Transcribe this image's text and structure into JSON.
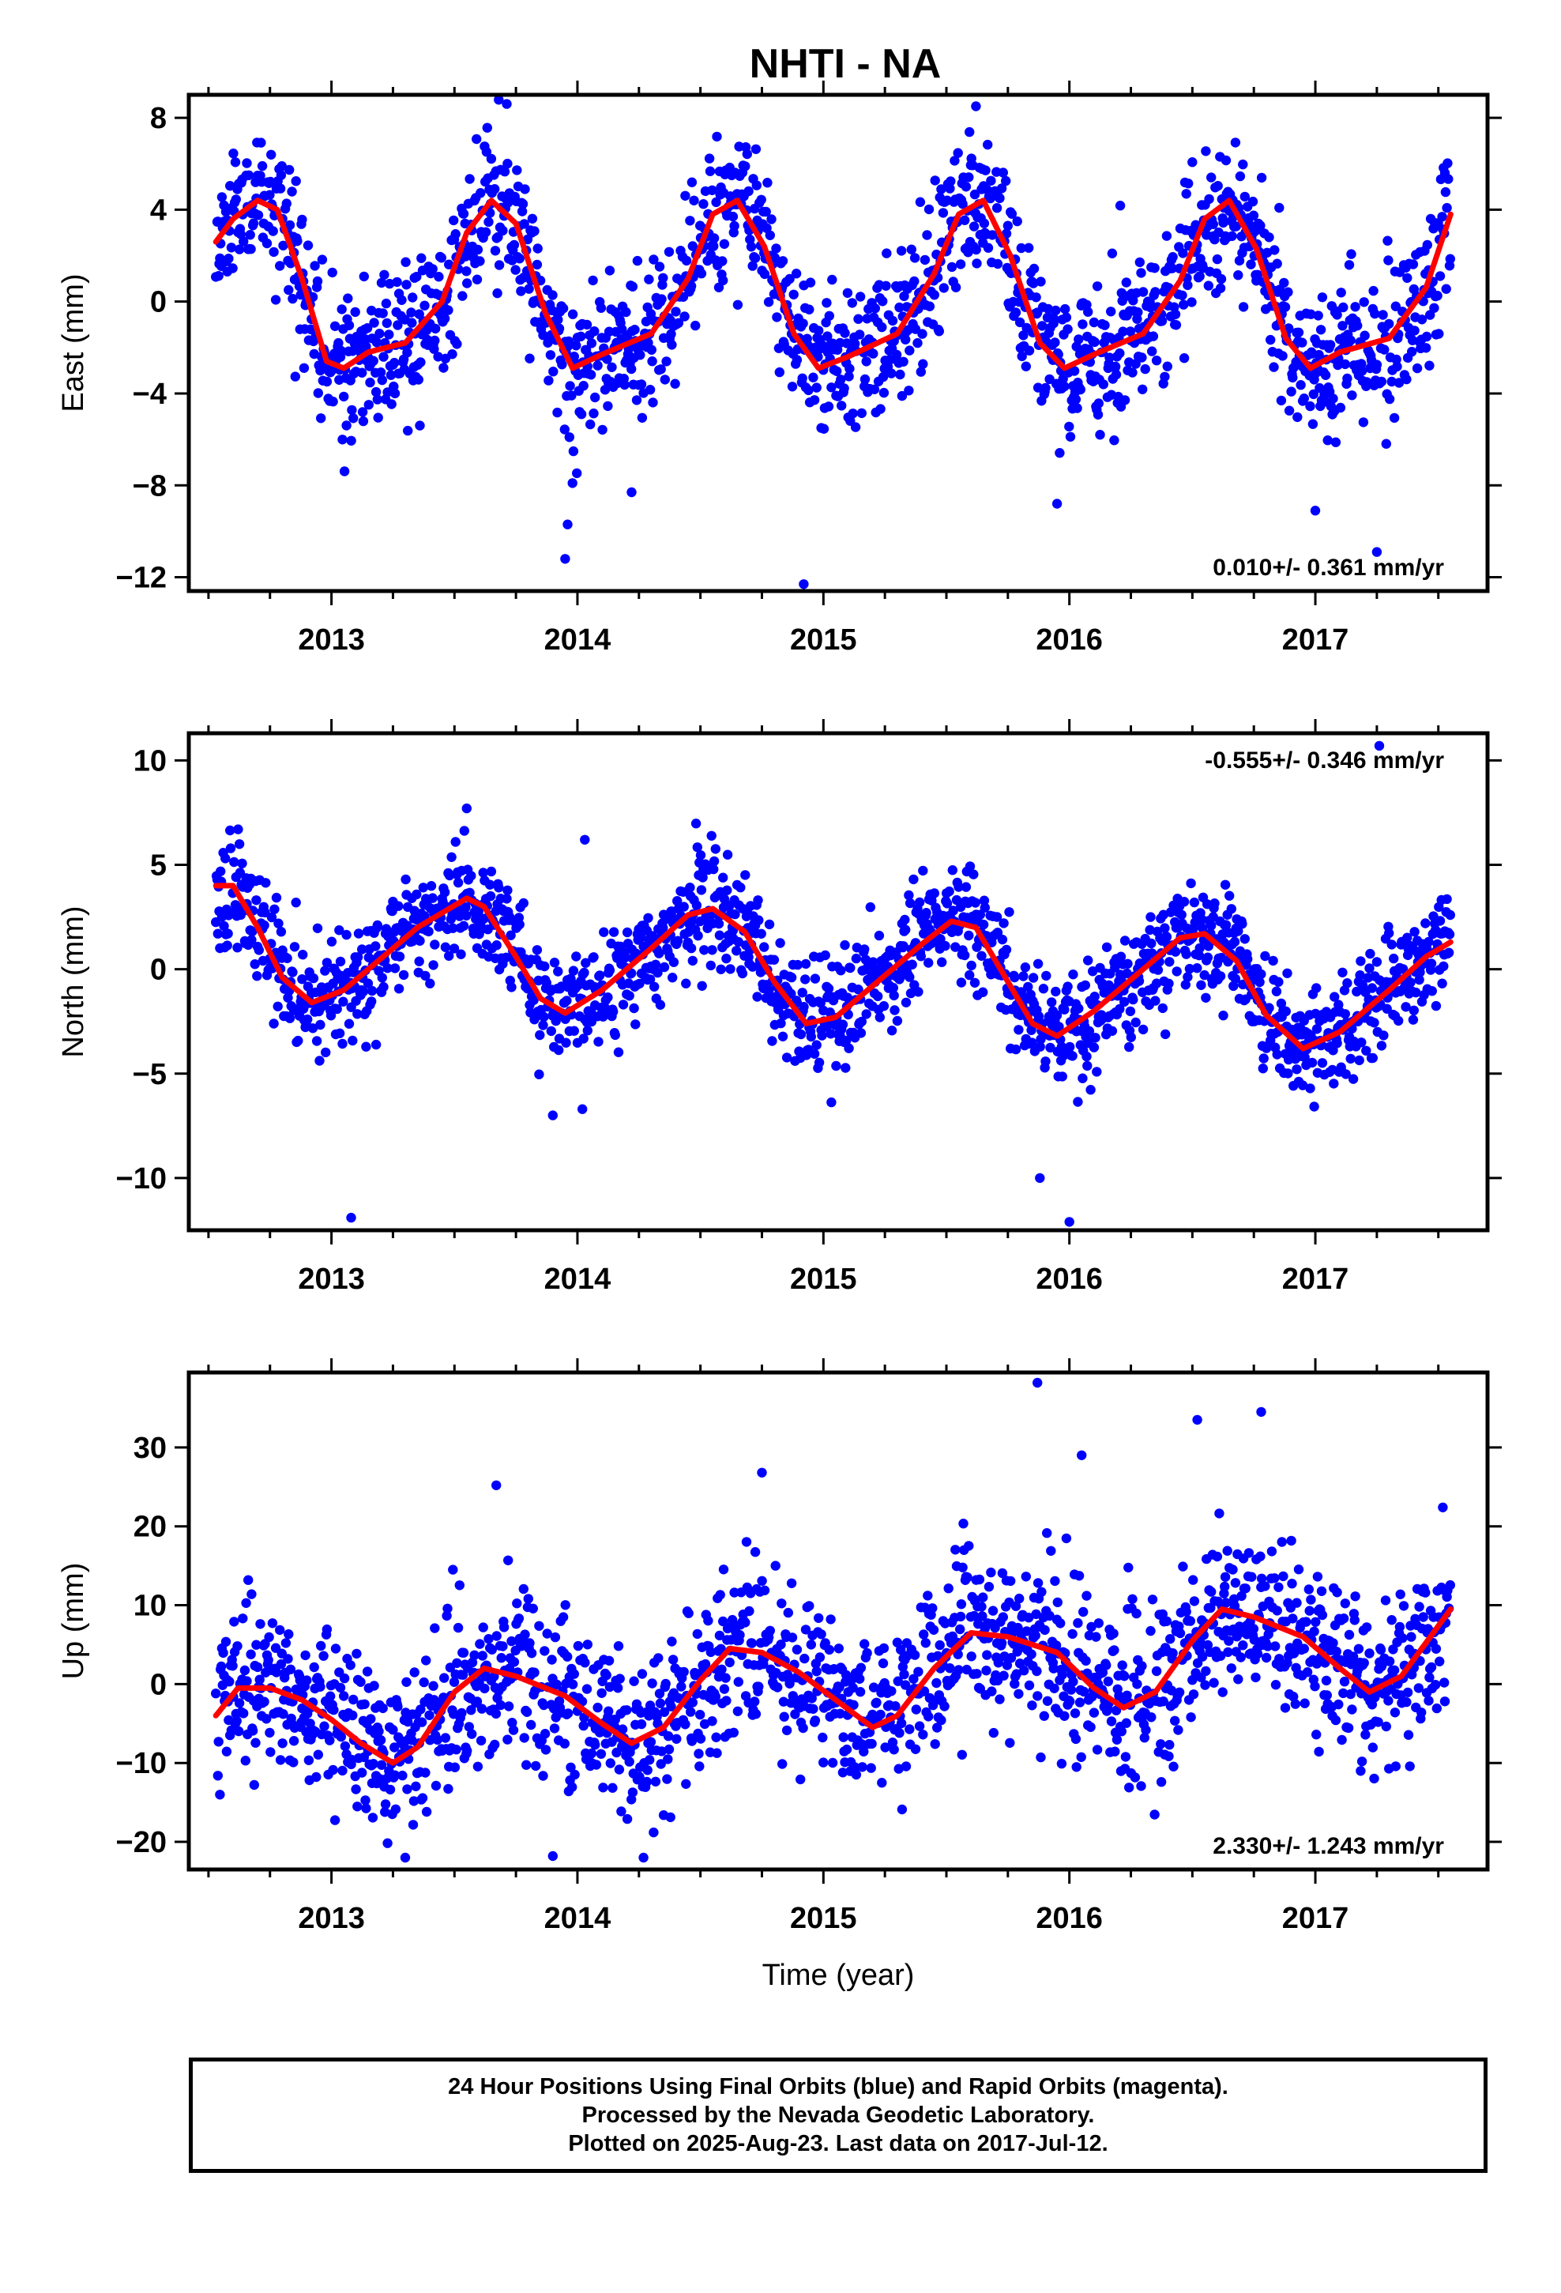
{
  "title": "NHTI - NA",
  "colors": {
    "final_orbits": "#0000ff",
    "rapid_orbits": "#ff00ff",
    "fit": "#ff0000",
    "frame": "#000000"
  },
  "footer": {
    "line1": "24 Hour Positions Using Final Orbits (blue) and Rapid Orbits (magenta).",
    "line2": "Processed by the Nevada Geodetic Laboratory.",
    "line3": "Plotted on 2025-Aug-23. Last data on 2017-Jul-12."
  },
  "chart_data": [
    {
      "type": "scatter",
      "name": "east",
      "ylabel": "East (mm)",
      "xlabel": "",
      "xlim": [
        2012.42,
        2017.7
      ],
      "ylim": [
        -12.6,
        9.0
      ],
      "x_ticks": [
        2013,
        2014,
        2015,
        2016,
        2017
      ],
      "y_ticks": [
        8,
        4,
        0,
        -4,
        -8,
        -12
      ],
      "y_tick_labels": [
        "8",
        "4",
        "0",
        "−4",
        "−8",
        "−12"
      ],
      "rate_text": "0.010+/- 0.361 mm/yr",
      "rate_position": "bottom-right",
      "point_color": "#0000ff",
      "fit_color": "#ff0000",
      "seed": 11,
      "noise": 1.6,
      "fit": [
        [
          2012.53,
          2.6
        ],
        [
          2012.6,
          3.6
        ],
        [
          2012.7,
          4.4
        ],
        [
          2012.78,
          4.0
        ],
        [
          2012.88,
          1.0
        ],
        [
          2012.98,
          -2.6
        ],
        [
          2013.05,
          -2.9
        ],
        [
          2013.15,
          -2.2
        ],
        [
          2013.3,
          -1.8
        ],
        [
          2013.45,
          0.0
        ],
        [
          2013.55,
          3.0
        ],
        [
          2013.65,
          4.4
        ],
        [
          2013.75,
          3.4
        ],
        [
          2013.87,
          -0.5
        ],
        [
          2013.98,
          -2.9
        ],
        [
          2014.1,
          -2.3
        ],
        [
          2014.3,
          -1.4
        ],
        [
          2014.45,
          1.0
        ],
        [
          2014.55,
          3.8
        ],
        [
          2014.65,
          4.4
        ],
        [
          2014.76,
          2.4
        ],
        [
          2014.88,
          -1.4
        ],
        [
          2014.98,
          -2.9
        ],
        [
          2015.1,
          -2.4
        ],
        [
          2015.3,
          -1.4
        ],
        [
          2015.45,
          1.2
        ],
        [
          2015.55,
          3.8
        ],
        [
          2015.65,
          4.4
        ],
        [
          2015.76,
          2.0
        ],
        [
          2015.88,
          -1.8
        ],
        [
          2015.98,
          -2.9
        ],
        [
          2016.1,
          -2.3
        ],
        [
          2016.3,
          -1.4
        ],
        [
          2016.45,
          0.9
        ],
        [
          2016.55,
          3.6
        ],
        [
          2016.65,
          4.4
        ],
        [
          2016.76,
          2.3
        ],
        [
          2016.88,
          -1.6
        ],
        [
          2016.98,
          -2.9
        ],
        [
          2017.1,
          -2.2
        ],
        [
          2017.3,
          -1.6
        ],
        [
          2017.45,
          0.6
        ],
        [
          2017.55,
          3.8
        ]
      ],
      "outliers": [
        [
          2013.95,
          -11.2
        ],
        [
          2013.96,
          -9.7
        ],
        [
          2014.92,
          -12.3
        ],
        [
          2015.62,
          8.5
        ],
        [
          2017.25,
          -10.9
        ],
        [
          2015.95,
          -8.8
        ],
        [
          2017.0,
          -9.1
        ],
        [
          2014.22,
          -8.3
        ],
        [
          2013.98,
          -7.9
        ]
      ]
    },
    {
      "type": "scatter",
      "name": "north",
      "ylabel": "North (mm)",
      "xlabel": "",
      "xlim": [
        2012.42,
        2017.7
      ],
      "ylim": [
        -12.5,
        11.3
      ],
      "x_ticks": [
        2013,
        2014,
        2015,
        2016,
        2017
      ],
      "y_ticks": [
        10,
        5,
        0,
        -5,
        -10
      ],
      "y_tick_labels": [
        "10",
        "5",
        "0",
        "−5",
        "−10"
      ],
      "rate_text": "-0.555+/- 0.346 mm/yr",
      "rate_position": "top-right",
      "point_color": "#0000ff",
      "fit_color": "#ff0000",
      "seed": 23,
      "noise": 1.35,
      "fit": [
        [
          2012.53,
          4.0
        ],
        [
          2012.6,
          4.0
        ],
        [
          2012.7,
          2.0
        ],
        [
          2012.8,
          -0.4
        ],
        [
          2012.92,
          -1.6
        ],
        [
          2013.05,
          -1.0
        ],
        [
          2013.2,
          0.5
        ],
        [
          2013.35,
          2.0
        ],
        [
          2013.55,
          3.4
        ],
        [
          2013.62,
          3.0
        ],
        [
          2013.75,
          0.6
        ],
        [
          2013.85,
          -1.4
        ],
        [
          2013.95,
          -2.1
        ],
        [
          2014.1,
          -1.0
        ],
        [
          2014.3,
          1.0
        ],
        [
          2014.45,
          2.6
        ],
        [
          2014.55,
          2.9
        ],
        [
          2014.68,
          1.8
        ],
        [
          2014.8,
          -0.6
        ],
        [
          2014.93,
          -2.6
        ],
        [
          2015.05,
          -2.3
        ],
        [
          2015.2,
          -0.8
        ],
        [
          2015.4,
          1.2
        ],
        [
          2015.52,
          2.3
        ],
        [
          2015.62,
          2.0
        ],
        [
          2015.75,
          -0.6
        ],
        [
          2015.85,
          -2.6
        ],
        [
          2015.95,
          -3.2
        ],
        [
          2016.1,
          -2.0
        ],
        [
          2016.3,
          0.0
        ],
        [
          2016.45,
          1.5
        ],
        [
          2016.55,
          1.7
        ],
        [
          2016.68,
          0.4
        ],
        [
          2016.8,
          -2.2
        ],
        [
          2016.95,
          -3.8
        ],
        [
          2017.1,
          -3.0
        ],
        [
          2017.3,
          -1.0
        ],
        [
          2017.45,
          0.6
        ],
        [
          2017.55,
          1.3
        ]
      ],
      "outliers": [
        [
          2013.08,
          -11.9
        ],
        [
          2013.55,
          7.7
        ],
        [
          2014.03,
          6.2
        ],
        [
          2015.88,
          -10.0
        ],
        [
          2016.0,
          -12.1
        ],
        [
          2017.26,
          10.7
        ],
        [
          2013.9,
          -7.0
        ],
        [
          2014.02,
          -6.7
        ]
      ]
    },
    {
      "type": "scatter",
      "name": "up",
      "ylabel": "Up (mm)",
      "xlabel": "Time (year)",
      "xlim": [
        2012.42,
        2017.7
      ],
      "ylim": [
        -23.5,
        39.5
      ],
      "x_ticks": [
        2013,
        2014,
        2015,
        2016,
        2017
      ],
      "y_ticks": [
        30,
        20,
        10,
        0,
        -10,
        -20
      ],
      "y_tick_labels": [
        "30",
        "20",
        "10",
        "0",
        "−10",
        "−20"
      ],
      "rate_text": "2.330+/- 1.243 mm/yr",
      "rate_position": "bottom-right",
      "point_color": "#0000ff",
      "fit_color": "#ff0000",
      "seed": 37,
      "noise": 5.2,
      "fit": [
        [
          2012.53,
          -4.0
        ],
        [
          2012.62,
          -0.5
        ],
        [
          2012.75,
          -0.5
        ],
        [
          2012.88,
          -2.0
        ],
        [
          2013.0,
          -4.5
        ],
        [
          2013.12,
          -7.5
        ],
        [
          2013.25,
          -10.0
        ],
        [
          2013.35,
          -8.0
        ],
        [
          2013.5,
          -1.0
        ],
        [
          2013.62,
          2.0
        ],
        [
          2013.75,
          1.0
        ],
        [
          2013.95,
          -1.5
        ],
        [
          2014.1,
          -5.0
        ],
        [
          2014.22,
          -7.5
        ],
        [
          2014.35,
          -5.5
        ],
        [
          2014.5,
          0.5
        ],
        [
          2014.62,
          4.5
        ],
        [
          2014.75,
          4.0
        ],
        [
          2014.9,
          1.5
        ],
        [
          2015.05,
          -2.0
        ],
        [
          2015.2,
          -5.5
        ],
        [
          2015.3,
          -4.0
        ],
        [
          2015.45,
          2.0
        ],
        [
          2015.6,
          6.5
        ],
        [
          2015.75,
          6.0
        ],
        [
          2015.95,
          4.0
        ],
        [
          2016.1,
          -0.5
        ],
        [
          2016.22,
          -3.0
        ],
        [
          2016.35,
          -1.0
        ],
        [
          2016.5,
          5.5
        ],
        [
          2016.62,
          9.5
        ],
        [
          2016.75,
          8.5
        ],
        [
          2016.95,
          6.0
        ],
        [
          2017.1,
          2.0
        ],
        [
          2017.22,
          -1.0
        ],
        [
          2017.35,
          1.0
        ],
        [
          2017.55,
          9.5
        ]
      ],
      "outliers": [
        [
          2015.87,
          38.2
        ],
        [
          2016.78,
          34.5
        ],
        [
          2016.52,
          33.5
        ],
        [
          2013.9,
          -21.8
        ],
        [
          2013.3,
          -22.0
        ],
        [
          2014.75,
          26.8
        ],
        [
          2013.67,
          25.2
        ],
        [
          2016.05,
          29.0
        ]
      ]
    }
  ]
}
